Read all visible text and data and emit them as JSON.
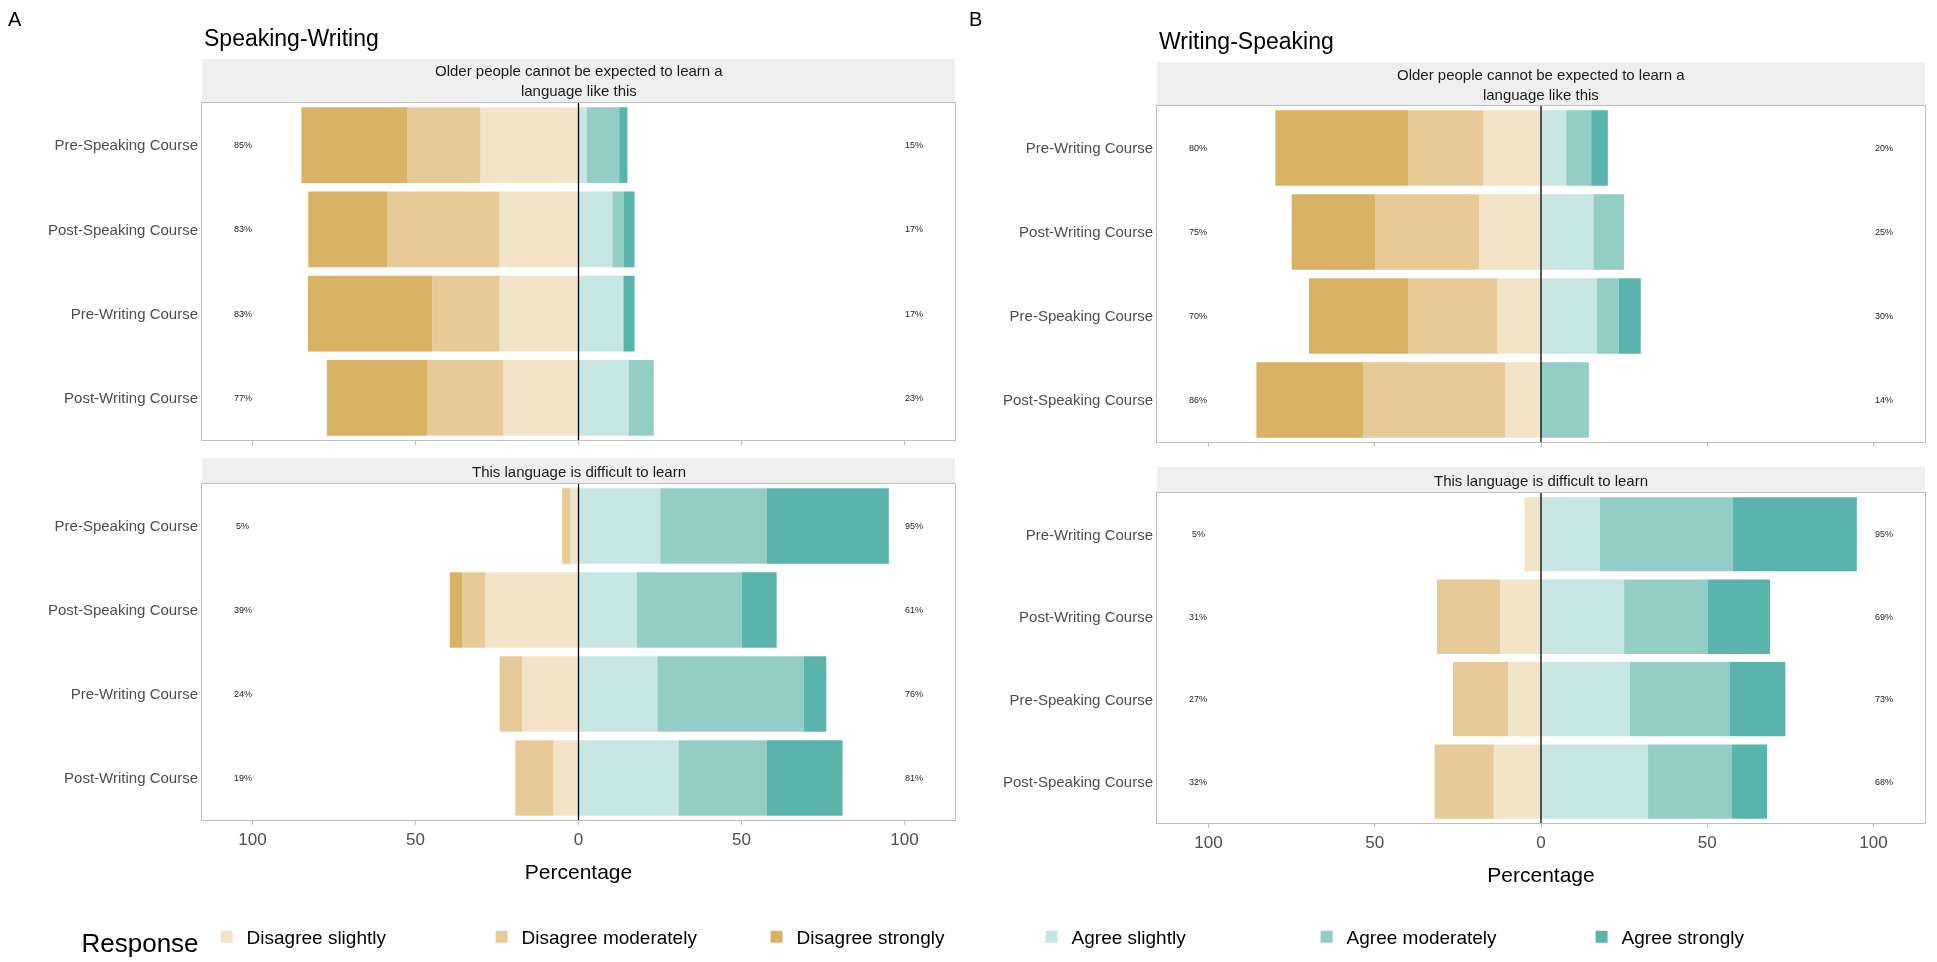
{
  "chart_data": [
    {
      "type": "bar",
      "orientation": "horizontal",
      "stacked": true,
      "title": "Speaking-Writing",
      "subtitle": "Older people cannot be expected to learn a language like this",
      "legend_title": "Response",
      "legend": "bottom",
      "tick_labels": "y",
      "grid": false,
      "categories": [
        "Pre-Speaking Course",
        "Post-Speaking Course",
        "Pre-Writing Course",
        "Post-Writing Course"
      ],
      "xlim": [
        -115.5,
        115.5
      ],
      "xticks": [
        {
          "value": -100,
          "label": null
        },
        {
          "value": -50,
          "label": null
        },
        {
          "value": 0,
          "label": null
        },
        {
          "value": 50,
          "label": null
        },
        {
          "value": 100,
          "label": null
        }
      ],
      "ref_lines": [
        {
          "axis": "x",
          "value": 0,
          "color": "#000000"
        }
      ],
      "series": [
        {
          "name": "Disagree slightly",
          "color": "#f2e4c9",
          "values": [
            -30.1,
            -24.2,
            -24.2,
            -23.0
          ]
        },
        {
          "name": "Disagree moderately",
          "color": "#e6cb98",
          "values": [
            -22.5,
            -34.5,
            -20.7,
            -23.3
          ]
        },
        {
          "name": "Disagree strongly",
          "color": "#d8b365",
          "values": [
            -32.4,
            -24.2,
            -38.1,
            -30.9
          ]
        },
        {
          "name": "Agree slightly",
          "color": "#c8e6e4",
          "values": [
            2.5,
            10.4,
            13.8,
            15.4
          ]
        },
        {
          "name": "Agree moderately",
          "color": "#93cdc6",
          "values": [
            10.0,
            3.4,
            0,
            7.7
          ]
        },
        {
          "name": "Agree strongly",
          "color": "#5ab4ac",
          "values": [
            2.5,
            3.4,
            3.4,
            0
          ]
        }
      ],
      "annotations": [
        "A"
      ],
      "totals": [
        [
          "85%",
          "15%"
        ],
        [
          "83%",
          "17%"
        ],
        [
          "83%",
          "17%"
        ],
        [
          "77%",
          "23%"
        ]
      ]
    },
    {
      "type": "bar",
      "orientation": "horizontal",
      "stacked": true,
      "subtitle": "This language is difficult to learn",
      "xlabel": "Percentage",
      "grid": false,
      "categories": [
        "Pre-Speaking Course",
        "Post-Speaking Course",
        "Pre-Writing Course",
        "Post-Writing Course"
      ],
      "xlim": [
        -115.5,
        115.5
      ],
      "xticks": [
        {
          "value": -100,
          "label": "100"
        },
        {
          "value": -50,
          "label": "50"
        },
        0,
        50,
        100
      ],
      "ref_lines": [
        {
          "axis": "x",
          "value": 0,
          "color": "#000000"
        }
      ],
      "series": [
        {
          "color": "#f2e4c9",
          "values": [
            -2.5,
            -28.6,
            -17.3,
            -7.7
          ]
        },
        {
          "color": "#e6cb98",
          "values": [
            -2.5,
            -7.1,
            -6.9,
            -11.7
          ]
        },
        {
          "color": "#d8b365",
          "values": [
            0,
            -3.8,
            0,
            0
          ]
        },
        {
          "color": "#c8e6e4",
          "values": [
            25.1,
            17.9,
            24.2,
            30.7
          ]
        },
        {
          "color": "#93cdc6",
          "values": [
            32.7,
            32.2,
            44.9,
            27.1
          ]
        },
        {
          "color": "#5ab4ac",
          "values": [
            37.4,
            10.7,
            6.9,
            23.2
          ]
        }
      ],
      "totals": [
        [
          "5%",
          "95%"
        ],
        [
          "39%",
          "61%"
        ],
        [
          "24%",
          "76%"
        ],
        [
          "19%",
          "81%"
        ]
      ]
    },
    {
      "type": "bar",
      "orientation": "horizontal",
      "stacked": true,
      "title": "Writing-Speaking",
      "subtitle": "Older people cannot be expected to learn a language like this",
      "tick_labels": "y",
      "grid": false,
      "categories": [
        "Pre-Writing Course",
        "Post-Writing Course",
        "Pre-Speaking Course",
        "Post-Speaking Course"
      ],
      "xlim": [
        -115.5,
        115.5
      ],
      "xticks": [
        {
          "value": -100,
          "label": null
        },
        {
          "value": -50,
          "label": null
        },
        {
          "value": 0,
          "label": null
        },
        {
          "value": 50,
          "label": null
        },
        {
          "value": 100,
          "label": null
        }
      ],
      "ref_lines": [
        {
          "axis": "x",
          "value": 0,
          "color": "#000000"
        }
      ],
      "series": [
        {
          "color": "#f2e4c9",
          "values": [
            -17.3,
            -18.6,
            -13.1,
            -10.7
          ]
        },
        {
          "color": "#e6cb98",
          "values": [
            -22.7,
            -31.3,
            -26.9,
            -42.7
          ]
        },
        {
          "color": "#d8b365",
          "values": [
            -39.9,
            -25.1,
            -29.8,
            -32.2
          ]
        },
        {
          "color": "#c8e6e4",
          "values": [
            7.6,
            15.8,
            16.8,
            0
          ]
        },
        {
          "color": "#93cdc6",
          "values": [
            7.5,
            9.2,
            6.6,
            14.4
          ]
        },
        {
          "color": "#5ab4ac",
          "values": [
            5.0,
            0,
            6.6,
            0
          ]
        }
      ],
      "annotations": [
        "B"
      ],
      "totals": [
        [
          "80%",
          "20%"
        ],
        [
          "75%",
          "25%"
        ],
        [
          "70%",
          "30%"
        ],
        [
          "86%",
          "14%"
        ]
      ]
    },
    {
      "type": "bar",
      "orientation": "horizontal",
      "stacked": true,
      "subtitle": "This language is difficult to learn",
      "xlabel": "Percentage",
      "grid": false,
      "categories": [
        "Pre-Writing Course",
        "Post-Writing Course",
        "Pre-Speaking Course",
        "Post-Speaking Course"
      ],
      "xlim": [
        -115.5,
        115.5
      ],
      "xticks": [
        {
          "value": -100,
          "label": "100"
        },
        {
          "value": -50,
          "label": "50"
        },
        0,
        50,
        100
      ],
      "ref_lines": [
        {
          "axis": "x",
          "value": 0,
          "color": "#000000"
        }
      ],
      "series": [
        {
          "color": "#f2e4c9",
          "values": [
            -5.0,
            -12.3,
            -9.9,
            -14.2
          ]
        },
        {
          "color": "#e6cb98",
          "values": [
            0,
            -19.0,
            -16.6,
            -17.8
          ]
        },
        {
          "color": "#d8b365",
          "values": [
            0,
            0,
            0,
            0
          ]
        },
        {
          "color": "#c8e6e4",
          "values": [
            17.7,
            25.0,
            26.7,
            32.2
          ]
        },
        {
          "color": "#93cdc6",
          "values": [
            39.9,
            25.1,
            30.0,
            25.1
          ]
        },
        {
          "color": "#5ab4ac",
          "values": [
            37.4,
            18.8,
            16.8,
            10.7
          ]
        }
      ],
      "totals": [
        [
          "5%",
          "95%"
        ],
        [
          "31%",
          "69%"
        ],
        [
          "27%",
          "73%"
        ],
        [
          "32%",
          "68%"
        ]
      ]
    }
  ]
}
